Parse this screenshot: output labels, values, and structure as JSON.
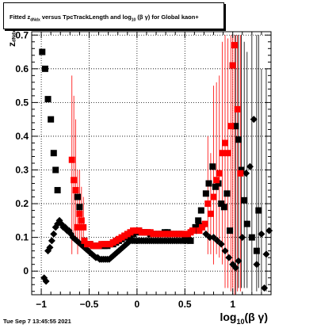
{
  "chart_data": {
    "type": "scatter",
    "title": "Fitted  z      versus TpcTrackLength and log   (β  γ) for Global kaon+",
    "title_parts": {
      "pre": "Fitted  z",
      "sub1": "dNdx",
      "mid": " versus TpcTrackLength and log",
      "sub2": "10",
      "post": " (β  γ) for Global kaon+"
    },
    "ylabel_parts": {
      "main": "z",
      "sub": "dNdx"
    },
    "xlabel_parts": {
      "main": "log",
      "sub": "10",
      "post": "(β γ)"
    },
    "xlim": [
      -1.1,
      1.4
    ],
    "ylim": [
      -0.07,
      0.71
    ],
    "xticks": [
      -1,
      -0.5,
      0,
      0.5,
      1
    ],
    "xtick_labels": [
      "−1",
      "−0.5",
      "0",
      "0.5",
      "1"
    ],
    "yticks": [
      0,
      0.1,
      0.2,
      0.3,
      0.4,
      0.5,
      0.6,
      0.7
    ],
    "ytick_labels": [
      "0",
      "0.1",
      "0.2",
      "0.3",
      "0.4",
      "0.5",
      "0.6",
      "0.7"
    ],
    "grid": true,
    "series": [
      {
        "marker": "square",
        "color": "#000000",
        "points": [
          [
            -0.99,
            0.65
          ],
          [
            -0.96,
            0.6
          ],
          [
            -0.93,
            0.51
          ],
          [
            -0.9,
            0.45
          ],
          [
            -0.87,
            0.35
          ],
          [
            -0.85,
            0.3
          ],
          [
            -0.83,
            0.24
          ],
          [
            -0.6,
            0.19
          ],
          [
            -0.62,
            0.22
          ],
          [
            -0.55,
            0.09
          ],
          [
            -0.52,
            0.08
          ],
          [
            -0.49,
            0.08
          ],
          [
            -0.46,
            0.075
          ],
          [
            -0.43,
            0.075
          ],
          [
            -0.4,
            0.075
          ],
          [
            -0.37,
            0.075
          ],
          [
            -0.34,
            0.075
          ],
          [
            -0.31,
            0.075
          ],
          [
            -0.28,
            0.08
          ],
          [
            -0.25,
            0.08
          ],
          [
            -0.22,
            0.085
          ],
          [
            -0.19,
            0.09
          ],
          [
            -0.16,
            0.095
          ],
          [
            -0.13,
            0.1
          ],
          [
            -0.1,
            0.1
          ],
          [
            -0.07,
            0.105
          ],
          [
            -0.04,
            0.11
          ],
          [
            -0.01,
            0.115
          ],
          [
            0.02,
            0.12
          ],
          [
            0.05,
            0.115
          ],
          [
            0.08,
            0.115
          ],
          [
            0.11,
            0.115
          ],
          [
            0.14,
            0.11
          ],
          [
            0.17,
            0.11
          ],
          [
            0.2,
            0.11
          ],
          [
            0.23,
            0.11
          ],
          [
            0.26,
            0.11
          ],
          [
            0.29,
            0.115
          ],
          [
            0.32,
            0.115
          ],
          [
            0.35,
            0.11
          ],
          [
            0.38,
            0.11
          ],
          [
            0.41,
            0.11
          ],
          [
            0.44,
            0.11
          ],
          [
            0.47,
            0.11
          ],
          [
            0.5,
            0.105
          ],
          [
            0.53,
            0.1
          ],
          [
            0.56,
            0.09
          ],
          [
            0.61,
            0.13
          ],
          [
            0.64,
            0.15
          ],
          [
            0.67,
            0.18
          ],
          [
            0.72,
            0.23
          ],
          [
            0.75,
            0.26
          ],
          [
            0.79,
            0.31
          ],
          [
            0.82,
            0.25
          ],
          [
            0.85,
            0.26
          ],
          [
            0.88,
            0.2
          ],
          [
            0.91,
            0.19
          ],
          [
            0.94,
            0.23
          ],
          [
            0.97,
            0.12
          ],
          [
            1.0,
            0.61
          ],
          [
            1.03,
            0.43
          ],
          [
            1.06,
            0.39
          ],
          [
            1.09,
            0.3
          ],
          [
            1.12,
            0.21
          ],
          [
            1.15,
            0.14
          ],
          [
            1.2,
            0.1
          ],
          [
            1.25,
            0.06
          ],
          [
            1.27,
            0.18
          ]
        ]
      },
      {
        "marker": "diamond",
        "color": "#000000",
        "points": [
          [
            -0.97,
            -0.02
          ],
          [
            -0.95,
            -0.03
          ],
          [
            -0.93,
            0.06
          ],
          [
            -0.91,
            0.07
          ],
          [
            -0.89,
            0.09
          ],
          [
            -0.87,
            0.11
          ],
          [
            -0.85,
            0.13
          ],
          [
            -0.83,
            0.14
          ],
          [
            -0.81,
            0.15
          ],
          [
            -0.79,
            0.14
          ],
          [
            -0.77,
            0.13
          ],
          [
            -0.75,
            0.13
          ],
          [
            -0.73,
            0.12
          ],
          [
            -0.71,
            0.12
          ],
          [
            -0.69,
            0.11
          ],
          [
            -0.67,
            0.1
          ],
          [
            -0.65,
            0.095
          ],
          [
            -0.63,
            0.09
          ],
          [
            -0.61,
            0.085
          ],
          [
            -0.59,
            0.08
          ],
          [
            -0.57,
            0.075
          ],
          [
            -0.55,
            0.07
          ],
          [
            -0.53,
            0.065
          ],
          [
            -0.51,
            0.06
          ],
          [
            -0.49,
            0.055
          ],
          [
            -0.47,
            0.05
          ],
          [
            -0.45,
            0.045
          ],
          [
            -0.43,
            0.04
          ],
          [
            -0.41,
            0.04
          ],
          [
            -0.39,
            0.035
          ],
          [
            -0.37,
            0.035
          ],
          [
            -0.35,
            0.035
          ],
          [
            -0.33,
            0.035
          ],
          [
            -0.31,
            0.035
          ],
          [
            -0.29,
            0.035
          ],
          [
            -0.27,
            0.04
          ],
          [
            -0.25,
            0.045
          ],
          [
            -0.23,
            0.05
          ],
          [
            -0.21,
            0.055
          ],
          [
            -0.19,
            0.06
          ],
          [
            -0.17,
            0.065
          ],
          [
            -0.15,
            0.07
          ],
          [
            -0.13,
            0.075
          ],
          [
            -0.11,
            0.08
          ],
          [
            -0.09,
            0.085
          ],
          [
            -0.07,
            0.09
          ],
          [
            -0.05,
            0.09
          ],
          [
            -0.03,
            0.09
          ],
          [
            -0.01,
            0.09
          ],
          [
            0.01,
            0.09
          ],
          [
            0.03,
            0.09
          ],
          [
            0.05,
            0.09
          ],
          [
            0.07,
            0.09
          ],
          [
            0.09,
            0.09
          ],
          [
            0.11,
            0.09
          ],
          [
            0.13,
            0.09
          ],
          [
            0.15,
            0.09
          ],
          [
            0.17,
            0.09
          ],
          [
            0.19,
            0.09
          ],
          [
            0.21,
            0.09
          ],
          [
            0.23,
            0.09
          ],
          [
            0.25,
            0.09
          ],
          [
            0.27,
            0.09
          ],
          [
            0.29,
            0.09
          ],
          [
            0.31,
            0.09
          ],
          [
            0.33,
            0.09
          ],
          [
            0.35,
            0.09
          ],
          [
            0.37,
            0.09
          ],
          [
            0.39,
            0.09
          ],
          [
            0.41,
            0.09
          ],
          [
            0.43,
            0.09
          ],
          [
            0.45,
            0.09
          ],
          [
            0.47,
            0.09
          ],
          [
            0.49,
            0.09
          ],
          [
            0.51,
            0.09
          ],
          [
            0.53,
            0.09
          ],
          [
            0.55,
            0.095
          ],
          [
            0.62,
            0.12
          ],
          [
            0.65,
            0.14
          ],
          [
            0.68,
            0.13
          ],
          [
            0.72,
            0.11
          ],
          [
            0.76,
            0.1
          ],
          [
            0.8,
            0.1
          ],
          [
            0.84,
            0.09
          ],
          [
            0.88,
            0.08
          ],
          [
            0.92,
            0.06
          ],
          [
            0.96,
            0.04
          ],
          [
            1.0,
            0.02
          ],
          [
            1.03,
            0.01
          ],
          [
            1.06,
            0.03
          ],
          [
            1.1,
            0.1
          ],
          [
            1.14,
            0.29
          ],
          [
            1.18,
            0.31
          ],
          [
            1.22,
            0.45
          ],
          [
            1.25,
            0.02
          ],
          [
            1.3,
            0.11
          ],
          [
            1.35,
            0.05
          ],
          [
            1.38,
            0.12
          ],
          [
            1.33,
            -0.05
          ]
        ]
      },
      {
        "marker": "square",
        "color": "#ff0000",
        "points": [
          [
            -0.68,
            0.33
          ],
          [
            -0.66,
            0.27
          ],
          [
            -0.64,
            0.24
          ],
          [
            -0.62,
            0.13
          ],
          [
            -0.6,
            0.17
          ],
          [
            -0.58,
            0.15
          ],
          [
            -0.56,
            0.13
          ],
          [
            -0.55,
            0.09
          ],
          [
            -0.52,
            0.08
          ],
          [
            -0.49,
            0.08
          ],
          [
            -0.46,
            0.075
          ],
          [
            -0.43,
            0.075
          ],
          [
            -0.4,
            0.075
          ],
          [
            -0.37,
            0.08
          ],
          [
            -0.34,
            0.08
          ],
          [
            -0.31,
            0.08
          ],
          [
            -0.28,
            0.08
          ],
          [
            -0.25,
            0.085
          ],
          [
            -0.22,
            0.09
          ],
          [
            -0.19,
            0.095
          ],
          [
            -0.16,
            0.1
          ],
          [
            -0.13,
            0.105
          ],
          [
            -0.1,
            0.11
          ],
          [
            -0.07,
            0.115
          ],
          [
            -0.04,
            0.12
          ],
          [
            -0.01,
            0.12
          ],
          [
            0.02,
            0.12
          ],
          [
            0.05,
            0.115
          ],
          [
            0.08,
            0.115
          ],
          [
            0.11,
            0.115
          ],
          [
            0.14,
            0.115
          ],
          [
            0.17,
            0.11
          ],
          [
            0.2,
            0.11
          ],
          [
            0.23,
            0.11
          ],
          [
            0.26,
            0.11
          ],
          [
            0.29,
            0.11
          ],
          [
            0.32,
            0.11
          ],
          [
            0.35,
            0.11
          ],
          [
            0.38,
            0.11
          ],
          [
            0.41,
            0.11
          ],
          [
            0.44,
            0.11
          ],
          [
            0.47,
            0.11
          ],
          [
            0.5,
            0.11
          ],
          [
            0.53,
            0.11
          ],
          [
            0.56,
            0.115
          ],
          [
            0.58,
            0.12
          ],
          [
            0.65,
            0.12
          ],
          [
            0.68,
            0.13
          ],
          [
            0.71,
            0.14
          ],
          [
            0.74,
            0.2
          ],
          [
            0.77,
            0.17
          ],
          [
            0.8,
            0.22
          ],
          [
            0.83,
            0.27
          ],
          [
            0.86,
            0.29
          ],
          [
            0.89,
            0.35
          ],
          [
            0.92,
            0.38
          ],
          [
            0.95,
            0.35
          ],
          [
            0.98,
            0.43
          ],
          [
            1.0,
            0.61
          ],
          [
            1.02,
            0.67
          ],
          [
            1.05,
            0.48
          ],
          [
            1.08,
            0.29
          ]
        ]
      }
    ],
    "error_bars_red": [
      [
        -0.68,
        0.05,
        0.58
      ],
      [
        -0.66,
        0.1,
        0.52
      ],
      [
        -0.64,
        0.1,
        0.45
      ],
      [
        -0.62,
        0.05,
        0.3
      ],
      [
        -0.6,
        0.08,
        0.3
      ],
      [
        -0.58,
        0.08,
        0.25
      ],
      [
        -0.56,
        0.07,
        0.22
      ],
      [
        0.74,
        0.05,
        0.4
      ],
      [
        0.77,
        0.05,
        0.35
      ],
      [
        0.8,
        0.02,
        0.55
      ],
      [
        0.83,
        0.05,
        0.56
      ],
      [
        0.86,
        0.04,
        0.58
      ],
      [
        0.89,
        0.02,
        0.68
      ],
      [
        0.92,
        -0.05,
        0.7
      ],
      [
        0.95,
        -0.05,
        0.69
      ],
      [
        0.98,
        -0.06,
        0.7
      ],
      [
        1.0,
        -0.05,
        0.7
      ],
      [
        1.02,
        -0.07,
        0.7
      ],
      [
        1.05,
        -0.06,
        0.7
      ],
      [
        1.08,
        -0.06,
        0.7
      ]
    ],
    "error_bars_black": [
      [
        1.03,
        -0.07,
        0.7
      ],
      [
        1.06,
        -0.05,
        0.7
      ],
      [
        1.09,
        -0.05,
        0.7
      ],
      [
        1.12,
        -0.05,
        0.68
      ],
      [
        1.15,
        -0.05,
        0.65
      ],
      [
        1.2,
        -0.06,
        0.7
      ],
      [
        1.25,
        -0.06,
        0.7
      ],
      [
        1.27,
        -0.05,
        0.7
      ],
      [
        1.3,
        -0.06,
        0.6
      ],
      [
        1.35,
        -0.06,
        0.6
      ]
    ]
  },
  "footer": {
    "timestamp": "Tue Sep  7 13:45:55 2021"
  }
}
